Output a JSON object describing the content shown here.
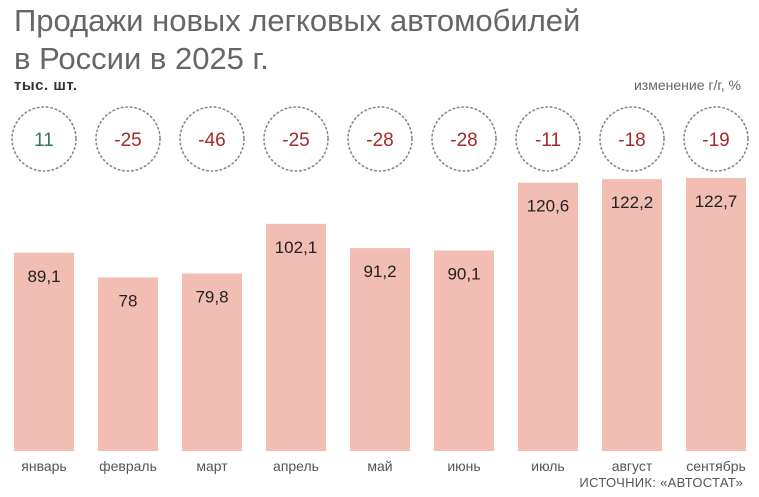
{
  "title_line1": "Продажи новых легковых автомобилей",
  "title_line2": "в России в 2025 г.",
  "unit_label": "тыс. шт.",
  "change_label": "изменение г/г, %",
  "source": "ИСТОЧНИК: «АВТОСТАТ»",
  "colors": {
    "bar": "#f2bdb2",
    "negative": "#a52a2a",
    "positive": "#2e7a5a",
    "circle": "#8a8a8a"
  },
  "chart_data": {
    "type": "bar",
    "categories": [
      "январь",
      "февраль",
      "март",
      "апрель",
      "май",
      "июнь",
      "июль",
      "август",
      "сентябрь"
    ],
    "series": [
      {
        "values": [
          89.1,
          78,
          79.8,
          102.1,
          91.2,
          90.1,
          120.6,
          122.2,
          122.7
        ]
      }
    ],
    "value_labels": [
      "89,1",
      "78",
      "79,8",
      "102,1",
      "91,2",
      "90,1",
      "120,6",
      "122,2",
      "122,7"
    ],
    "yoy_change": [
      11,
      -25,
      -46,
      -25,
      -28,
      -28,
      -11,
      -18,
      -19
    ],
    "ylabel": "тыс. шт.",
    "grid": false,
    "legend": "none"
  }
}
